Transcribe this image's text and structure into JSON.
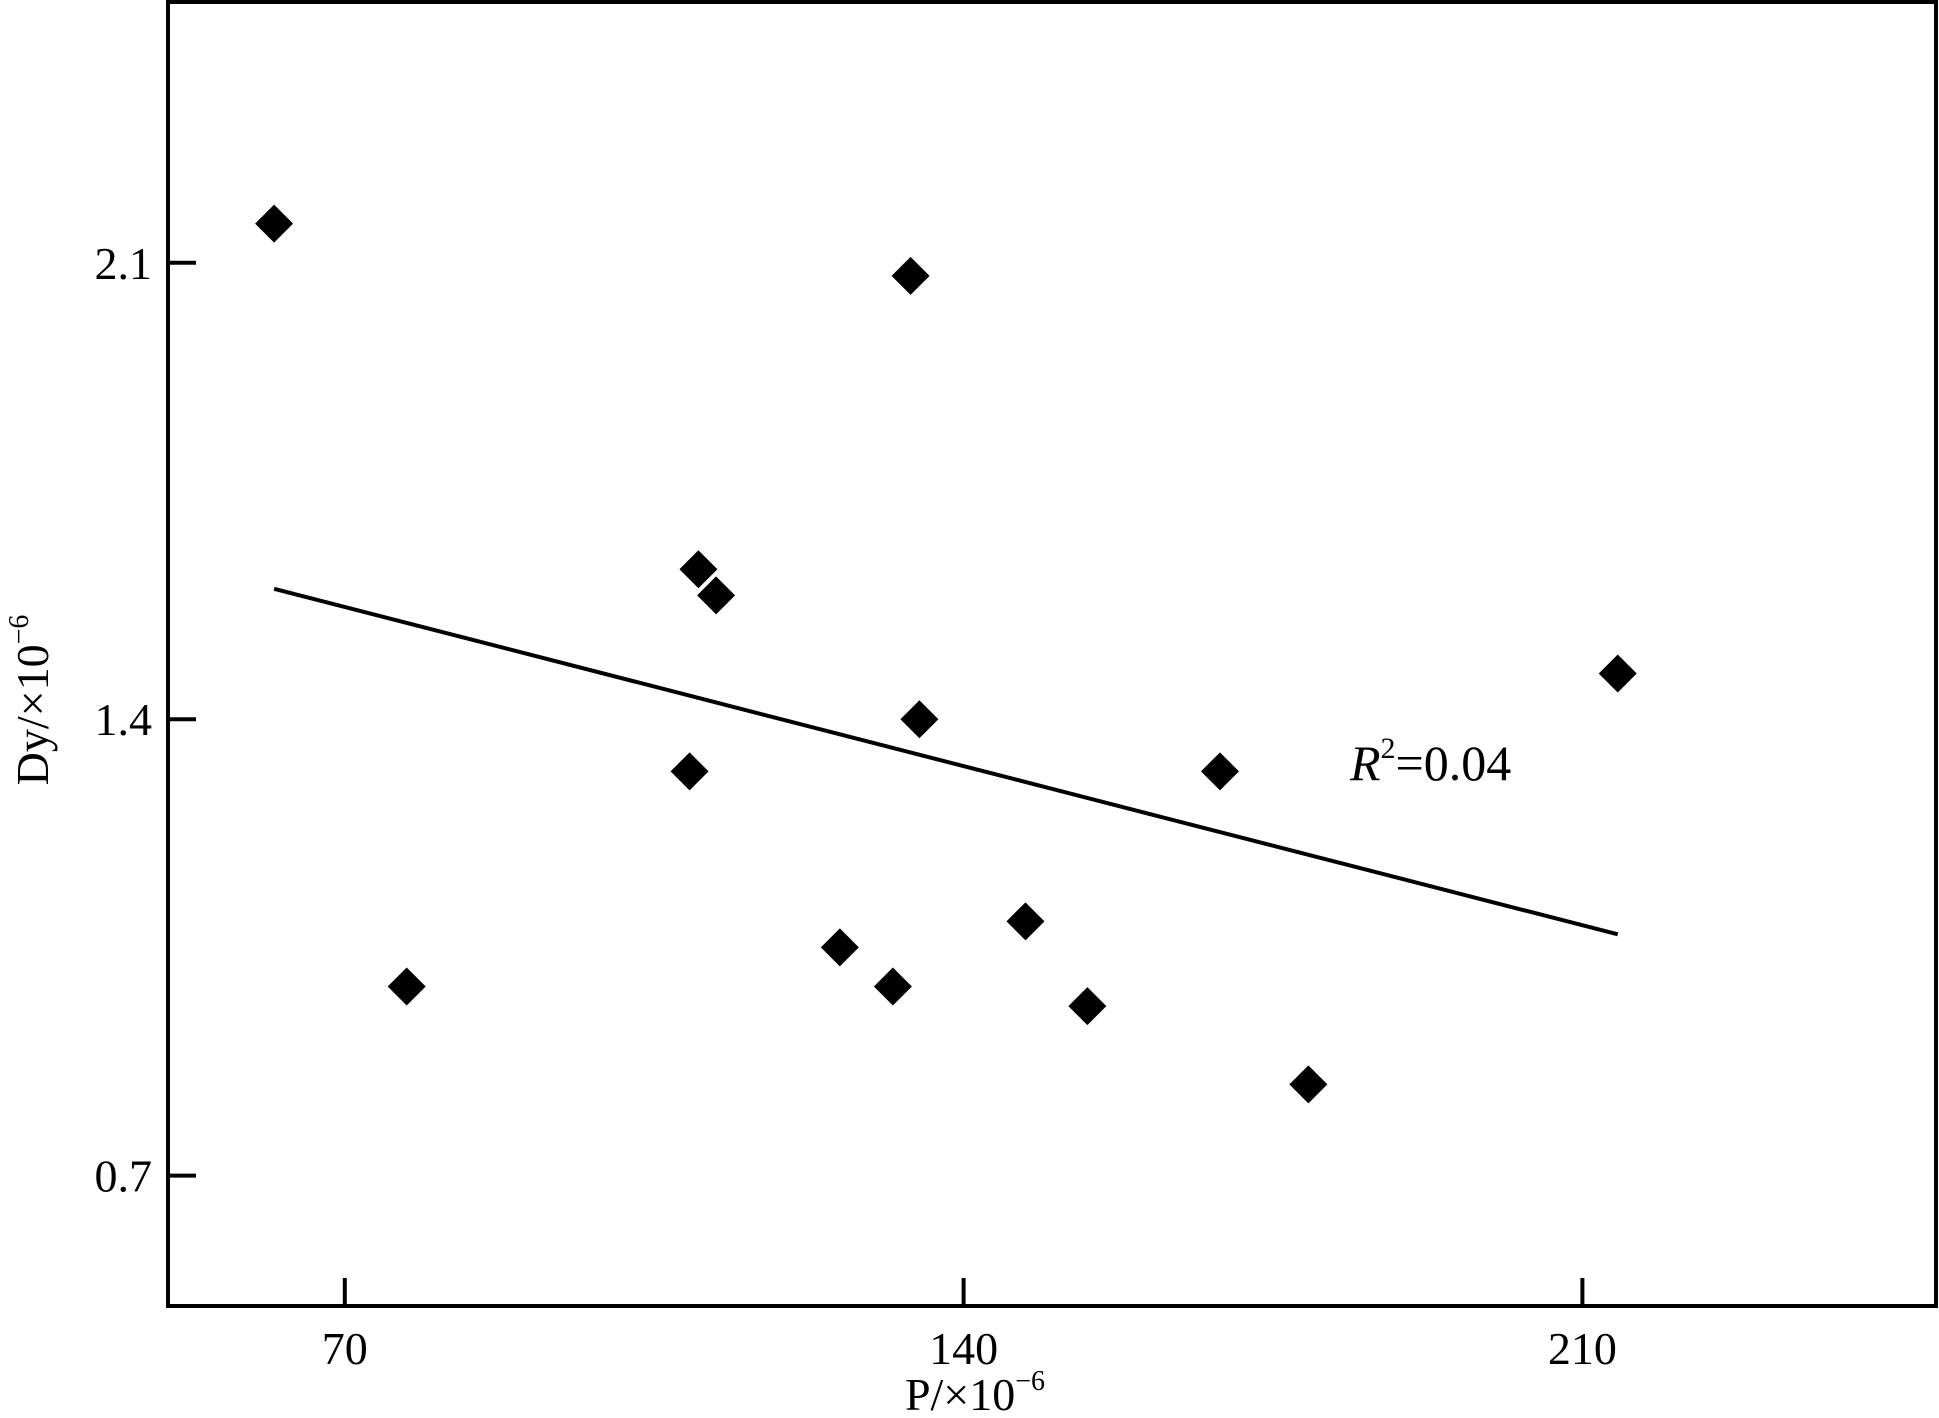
{
  "chart_data": {
    "type": "scatter",
    "xlabel": "P/×10",
    "xlabel_exp": "−6",
    "ylabel": "Dy/×10",
    "ylabel_exp": "−6",
    "xlim": [
      50,
      250
    ],
    "ylim": [
      0.5,
      2.5
    ],
    "xticks": [
      70,
      140,
      210
    ],
    "yticks": [
      0.7,
      1.4,
      2.1
    ],
    "xtick_labels": [
      "70",
      "140",
      "210"
    ],
    "ytick_labels": [
      "0.7",
      "1.4",
      "2.1"
    ],
    "points": [
      {
        "x": 62,
        "y": 2.16
      },
      {
        "x": 77,
        "y": 0.99
      },
      {
        "x": 110,
        "y": 1.63
      },
      {
        "x": 112,
        "y": 1.59
      },
      {
        "x": 109,
        "y": 1.32
      },
      {
        "x": 126,
        "y": 1.05
      },
      {
        "x": 132,
        "y": 0.99
      },
      {
        "x": 134,
        "y": 2.08
      },
      {
        "x": 135,
        "y": 1.4
      },
      {
        "x": 147,
        "y": 1.09
      },
      {
        "x": 154,
        "y": 0.96
      },
      {
        "x": 169,
        "y": 1.32
      },
      {
        "x": 179,
        "y": 0.84
      },
      {
        "x": 214,
        "y": 1.47
      }
    ],
    "trendline": {
      "x1": 62,
      "y1": 1.6,
      "x2": 214,
      "y2": 1.07
    },
    "annotation": {
      "prefix": "R",
      "sup": "2",
      "text": "=0.04"
    },
    "grid": false,
    "marker": "diamond",
    "color": "#000000"
  }
}
